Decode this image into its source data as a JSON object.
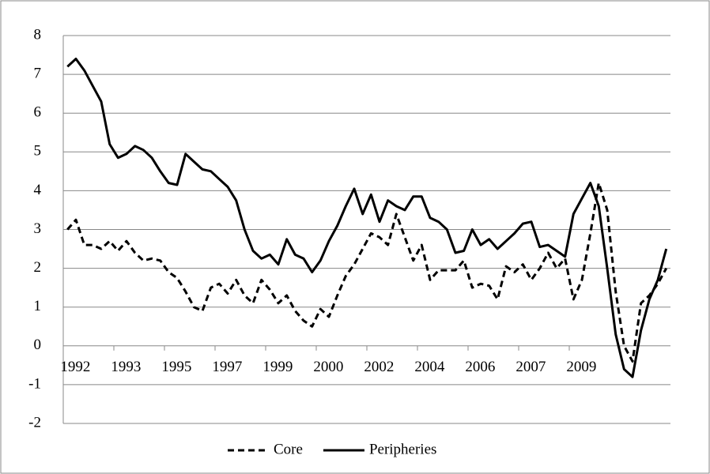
{
  "chart_data": {
    "type": "line",
    "categories": [
      "1992",
      null,
      null,
      null,
      null,
      null,
      "1993",
      null,
      null,
      null,
      null,
      null,
      "1995",
      null,
      null,
      null,
      null,
      null,
      "1997",
      null,
      null,
      null,
      null,
      null,
      "1999",
      null,
      null,
      null,
      null,
      null,
      "2000",
      null,
      null,
      null,
      null,
      null,
      "2002",
      null,
      null,
      null,
      null,
      null,
      "2004",
      null,
      null,
      null,
      null,
      null,
      "2006",
      null,
      null,
      null,
      null,
      null,
      "2007",
      null,
      null,
      null,
      null,
      null,
      "2009",
      null,
      null,
      null,
      null,
      null,
      null,
      null,
      null,
      null,
      null,
      null
    ],
    "series": [
      {
        "name": "Core",
        "color": "#000000",
        "dash": true,
        "values": [
          3.0,
          3.25,
          2.6,
          2.6,
          2.5,
          2.7,
          2.45,
          2.7,
          2.4,
          2.2,
          2.25,
          2.2,
          1.9,
          1.75,
          1.4,
          1.0,
          0.9,
          1.5,
          1.6,
          1.35,
          1.7,
          1.3,
          1.1,
          1.7,
          1.45,
          1.1,
          1.3,
          0.9,
          0.65,
          0.5,
          0.95,
          0.75,
          1.3,
          1.8,
          2.1,
          2.5,
          2.9,
          2.8,
          2.6,
          3.4,
          2.8,
          2.2,
          2.6,
          1.7,
          1.95,
          1.95,
          1.95,
          2.2,
          1.5,
          1.6,
          1.55,
          1.2,
          2.05,
          1.9,
          2.1,
          1.7,
          2.0,
          2.4,
          2.0,
          2.25,
          1.2,
          1.7,
          2.9,
          4.2,
          3.5,
          1.4,
          0.0,
          -0.4,
          1.1,
          1.3,
          1.6,
          2.0
        ]
      },
      {
        "name": "Peripheries",
        "color": "#000000",
        "dash": false,
        "values": [
          7.2,
          7.4,
          7.1,
          6.7,
          6.3,
          5.2,
          4.85,
          4.95,
          5.15,
          5.05,
          4.85,
          4.5,
          4.2,
          4.15,
          4.95,
          4.75,
          4.55,
          4.5,
          4.3,
          4.1,
          3.75,
          3.0,
          2.45,
          2.25,
          2.35,
          2.1,
          2.75,
          2.35,
          2.25,
          1.9,
          2.2,
          2.7,
          3.1,
          3.6,
          4.05,
          3.4,
          3.9,
          3.2,
          3.75,
          3.6,
          3.5,
          3.85,
          3.85,
          3.3,
          3.2,
          3.0,
          2.4,
          2.45,
          3.0,
          2.6,
          2.75,
          2.5,
          2.7,
          2.9,
          3.15,
          3.2,
          2.55,
          2.6,
          2.45,
          2.3,
          3.4,
          3.8,
          4.2,
          3.6,
          2.0,
          0.3,
          -0.6,
          -0.8,
          0.4,
          1.2,
          1.7,
          2.5
        ]
      }
    ],
    "ylim": [
      -2,
      8
    ],
    "yticks": [
      -2,
      -1,
      0,
      1,
      2,
      3,
      4,
      5,
      6,
      7,
      8
    ],
    "grid": true,
    "legend": "bottom"
  }
}
